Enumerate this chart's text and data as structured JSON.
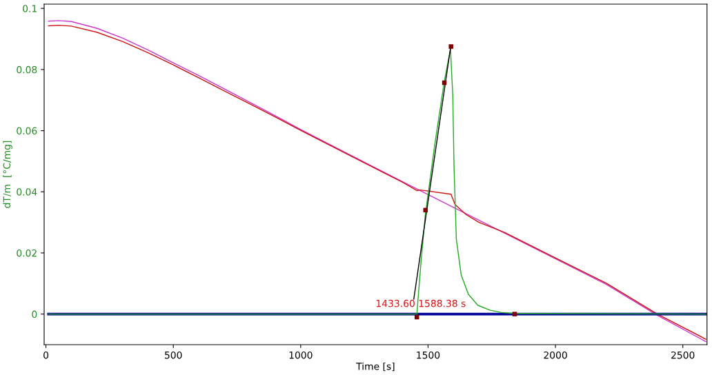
{
  "chart_data": {
    "type": "line",
    "xlabel": "Time [s]",
    "ylabel": "dT/m  [°C/mg]",
    "xlim": [
      -7,
      2595
    ],
    "ylim": [
      -0.01,
      0.1014
    ],
    "xticks": [
      0,
      500,
      1000,
      1500,
      2000,
      2500
    ],
    "yticks": [
      0,
      0.02,
      0.04,
      0.06,
      0.08,
      0.1
    ],
    "grid": false,
    "legend": false,
    "annotations": [
      "1433.60 1588.38 s"
    ],
    "series": [
      {
        "color": "#cc33cc",
        "x": [
          10,
          50,
          100,
          200,
          300,
          400,
          500,
          600,
          700,
          800,
          900,
          1000,
          1200,
          1400,
          1600,
          1800,
          2000,
          2200,
          2400,
          2590
        ],
        "values": [
          0.0958,
          0.096,
          0.0957,
          0.0935,
          0.0903,
          0.0864,
          0.0822,
          0.078,
          0.0737,
          0.0693,
          0.0649,
          0.0604,
          0.0518,
          0.0433,
          0.0349,
          0.0265,
          0.0181,
          0.0097,
          -0.0004,
          -0.009
        ]
      },
      {
        "color": "#cc1111",
        "x": [
          10,
          50,
          100,
          200,
          300,
          400,
          500,
          600,
          700,
          800,
          900,
          1000,
          1200,
          1400,
          1456,
          1470,
          1590,
          1606,
          1650,
          1700,
          1800,
          2000,
          2200,
          2400,
          2590
        ],
        "values": [
          0.0943,
          0.0945,
          0.0942,
          0.0922,
          0.0892,
          0.0855,
          0.0815,
          0.0773,
          0.073,
          0.0688,
          0.0645,
          0.0601,
          0.0516,
          0.0431,
          0.0404,
          0.0406,
          0.0392,
          0.0358,
          0.0325,
          0.03,
          0.0267,
          0.0184,
          0.0101,
          0.0,
          -0.0082
        ]
      },
      {
        "color": "#000099",
        "x": [
          10,
          2590
        ],
        "values": [
          0,
          0
        ]
      },
      {
        "color": "#22aa22",
        "x": [
          10,
          1456,
          1472,
          1489,
          1527,
          1564,
          1588,
          1597,
          1602,
          1611,
          1630,
          1658,
          1695,
          1742,
          1789,
          1840,
          2590
        ],
        "values": [
          0,
          0,
          0.0167,
          0.0323,
          0.0558,
          0.0762,
          0.0867,
          0.0715,
          0.048,
          0.0245,
          0.0128,
          0.0065,
          0.0029,
          0.0013,
          0.0005,
          0.0002,
          0
        ]
      },
      {
        "color": "#000000",
        "x": [
          1444,
          1588
        ],
        "values": [
          0.0049,
          0.087
        ]
      },
      {
        "type": "scatter",
        "marker": "square",
        "color": "#800000",
        "x": [
          1456,
          1490,
          1564,
          1590,
          1840
        ],
        "values": [
          -0.001,
          0.034,
          0.0757,
          0.0875,
          0.0
        ]
      }
    ]
  }
}
